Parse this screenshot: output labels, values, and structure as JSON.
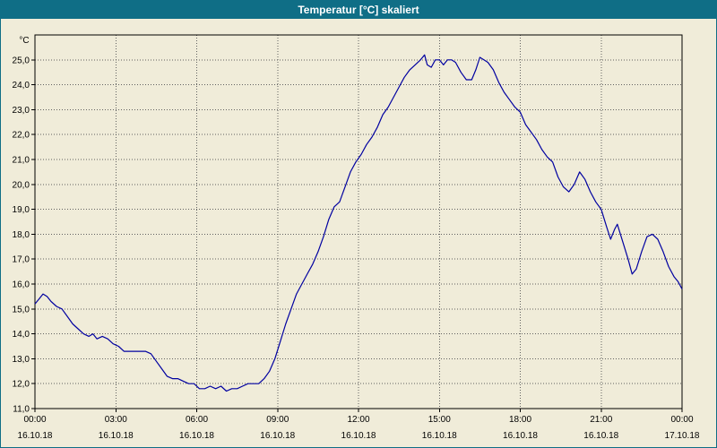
{
  "window": {
    "title": "Temperatur [°C] skaliert"
  },
  "colors": {
    "titlebar": "#0f6e86",
    "background": "#f0ecd9",
    "line": "#0000a0"
  },
  "chart_data": {
    "type": "line",
    "title": "Temperatur [°C] skaliert",
    "ylabel": "°C",
    "xlabel": "",
    "grid": true,
    "legend": "none",
    "ylim": [
      11.0,
      26.0
    ],
    "xlim_hours": [
      0,
      24
    ],
    "y_ticks": [
      {
        "label": "25,0",
        "value": 25
      },
      {
        "label": "24,0",
        "value": 24
      },
      {
        "label": "23,0",
        "value": 23
      },
      {
        "label": "22,0",
        "value": 22
      },
      {
        "label": "21,0",
        "value": 21
      },
      {
        "label": "20,0",
        "value": 20
      },
      {
        "label": "19,0",
        "value": 19
      },
      {
        "label": "18,0",
        "value": 18
      },
      {
        "label": "17,0",
        "value": 17
      },
      {
        "label": "16,0",
        "value": 16
      },
      {
        "label": "15,0",
        "value": 15
      },
      {
        "label": "14,0",
        "value": 14
      },
      {
        "label": "13,0",
        "value": 13
      },
      {
        "label": "12,0",
        "value": 12
      },
      {
        "label": "11,0",
        "value": 11
      }
    ],
    "x_ticks": [
      {
        "hour": 0,
        "time": "00:00",
        "date": "16.10.18"
      },
      {
        "hour": 3,
        "time": "03:00",
        "date": "16.10.18"
      },
      {
        "hour": 6,
        "time": "06:00",
        "date": "16.10.18"
      },
      {
        "hour": 9,
        "time": "09:00",
        "date": "16.10.18"
      },
      {
        "hour": 12,
        "time": "12:00",
        "date": "16.10.18"
      },
      {
        "hour": 15,
        "time": "15:00",
        "date": "16.10.18"
      },
      {
        "hour": 18,
        "time": "18:00",
        "date": "16.10.18"
      },
      {
        "hour": 21,
        "time": "21:00",
        "date": "16.10.18"
      },
      {
        "hour": 24,
        "time": "00:00",
        "date": "17.10.18"
      }
    ],
    "series": [
      {
        "name": "Temperatur",
        "points": [
          [
            0.0,
            15.2
          ],
          [
            0.15,
            15.4
          ],
          [
            0.3,
            15.6
          ],
          [
            0.45,
            15.5
          ],
          [
            0.6,
            15.3
          ],
          [
            0.8,
            15.1
          ],
          [
            1.0,
            15.0
          ],
          [
            1.2,
            14.7
          ],
          [
            1.4,
            14.4
          ],
          [
            1.6,
            14.2
          ],
          [
            1.8,
            14.0
          ],
          [
            2.0,
            13.9
          ],
          [
            2.15,
            14.0
          ],
          [
            2.3,
            13.8
          ],
          [
            2.5,
            13.9
          ],
          [
            2.7,
            13.8
          ],
          [
            2.9,
            13.6
          ],
          [
            3.1,
            13.5
          ],
          [
            3.3,
            13.3
          ],
          [
            3.6,
            13.3
          ],
          [
            3.9,
            13.3
          ],
          [
            4.1,
            13.3
          ],
          [
            4.3,
            13.2
          ],
          [
            4.5,
            12.9
          ],
          [
            4.7,
            12.6
          ],
          [
            4.9,
            12.3
          ],
          [
            5.1,
            12.2
          ],
          [
            5.3,
            12.2
          ],
          [
            5.5,
            12.1
          ],
          [
            5.7,
            12.0
          ],
          [
            5.9,
            12.0
          ],
          [
            6.1,
            11.8
          ],
          [
            6.3,
            11.8
          ],
          [
            6.5,
            11.9
          ],
          [
            6.7,
            11.8
          ],
          [
            6.9,
            11.9
          ],
          [
            7.1,
            11.7
          ],
          [
            7.3,
            11.8
          ],
          [
            7.5,
            11.8
          ],
          [
            7.7,
            11.9
          ],
          [
            7.9,
            12.0
          ],
          [
            8.1,
            12.0
          ],
          [
            8.3,
            12.0
          ],
          [
            8.5,
            12.2
          ],
          [
            8.7,
            12.5
          ],
          [
            8.9,
            13.0
          ],
          [
            9.1,
            13.7
          ],
          [
            9.3,
            14.4
          ],
          [
            9.5,
            15.0
          ],
          [
            9.7,
            15.6
          ],
          [
            9.9,
            16.0
          ],
          [
            10.1,
            16.4
          ],
          [
            10.3,
            16.8
          ],
          [
            10.5,
            17.3
          ],
          [
            10.7,
            17.9
          ],
          [
            10.9,
            18.6
          ],
          [
            11.1,
            19.1
          ],
          [
            11.3,
            19.3
          ],
          [
            11.5,
            19.9
          ],
          [
            11.7,
            20.5
          ],
          [
            11.9,
            20.9
          ],
          [
            12.1,
            21.2
          ],
          [
            12.3,
            21.6
          ],
          [
            12.5,
            21.9
          ],
          [
            12.7,
            22.3
          ],
          [
            12.9,
            22.8
          ],
          [
            13.1,
            23.1
          ],
          [
            13.3,
            23.5
          ],
          [
            13.5,
            23.9
          ],
          [
            13.7,
            24.3
          ],
          [
            13.9,
            24.6
          ],
          [
            14.1,
            24.8
          ],
          [
            14.3,
            25.0
          ],
          [
            14.45,
            25.2
          ],
          [
            14.55,
            24.8
          ],
          [
            14.7,
            24.7
          ],
          [
            14.85,
            25.0
          ],
          [
            15.0,
            25.0
          ],
          [
            15.15,
            24.8
          ],
          [
            15.3,
            25.0
          ],
          [
            15.45,
            25.0
          ],
          [
            15.6,
            24.9
          ],
          [
            15.8,
            24.5
          ],
          [
            16.0,
            24.2
          ],
          [
            16.2,
            24.2
          ],
          [
            16.35,
            24.6
          ],
          [
            16.5,
            25.1
          ],
          [
            16.65,
            25.0
          ],
          [
            16.8,
            24.9
          ],
          [
            17.0,
            24.6
          ],
          [
            17.2,
            24.1
          ],
          [
            17.4,
            23.7
          ],
          [
            17.6,
            23.4
          ],
          [
            17.8,
            23.1
          ],
          [
            18.0,
            22.9
          ],
          [
            18.2,
            22.4
          ],
          [
            18.4,
            22.1
          ],
          [
            18.6,
            21.8
          ],
          [
            18.8,
            21.4
          ],
          [
            19.0,
            21.1
          ],
          [
            19.2,
            20.9
          ],
          [
            19.4,
            20.3
          ],
          [
            19.6,
            19.9
          ],
          [
            19.8,
            19.7
          ],
          [
            20.0,
            20.0
          ],
          [
            20.2,
            20.5
          ],
          [
            20.4,
            20.2
          ],
          [
            20.6,
            19.7
          ],
          [
            20.8,
            19.3
          ],
          [
            21.0,
            19.0
          ],
          [
            21.2,
            18.3
          ],
          [
            21.35,
            17.8
          ],
          [
            21.5,
            18.2
          ],
          [
            21.6,
            18.4
          ],
          [
            21.8,
            17.7
          ],
          [
            22.0,
            17.0
          ],
          [
            22.15,
            16.4
          ],
          [
            22.3,
            16.6
          ],
          [
            22.5,
            17.3
          ],
          [
            22.7,
            17.9
          ],
          [
            22.9,
            18.0
          ],
          [
            23.1,
            17.8
          ],
          [
            23.3,
            17.3
          ],
          [
            23.5,
            16.7
          ],
          [
            23.7,
            16.3
          ],
          [
            23.85,
            16.1
          ],
          [
            24.0,
            15.8
          ]
        ]
      }
    ]
  }
}
